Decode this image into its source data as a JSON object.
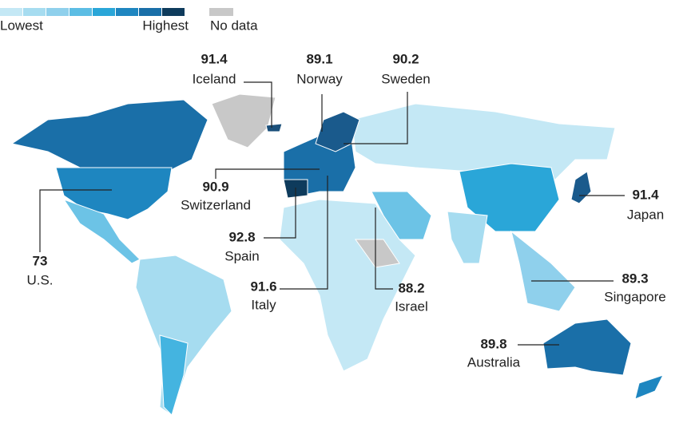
{
  "legend": {
    "scale_colors": [
      "#c4e8f5",
      "#a6dcf0",
      "#8fd0ec",
      "#5cbde4",
      "#2aa6d8",
      "#1e86c0",
      "#1a6fa8",
      "#0e3b5c"
    ],
    "low_label": "Lowest",
    "high_label": "Highest",
    "no_data_label": "No data",
    "no_data_color": "#c8c8c8"
  },
  "annotations": [
    {
      "label": "Iceland",
      "value": 91.4
    },
    {
      "label": "Norway",
      "value": 89.1
    },
    {
      "label": "Sweden",
      "value": 90.2
    },
    {
      "label": "Switzerland",
      "value": 90.9
    },
    {
      "label": "Spain",
      "value": 92.8
    },
    {
      "label": "Italy",
      "value": 91.6
    },
    {
      "label": "Israel",
      "value": 88.2
    },
    {
      "label": "U.S.",
      "value": 73
    },
    {
      "label": "Japan",
      "value": 91.4
    },
    {
      "label": "Singapore",
      "value": 89.3
    },
    {
      "label": "Australia",
      "value": 89.8
    }
  ]
}
